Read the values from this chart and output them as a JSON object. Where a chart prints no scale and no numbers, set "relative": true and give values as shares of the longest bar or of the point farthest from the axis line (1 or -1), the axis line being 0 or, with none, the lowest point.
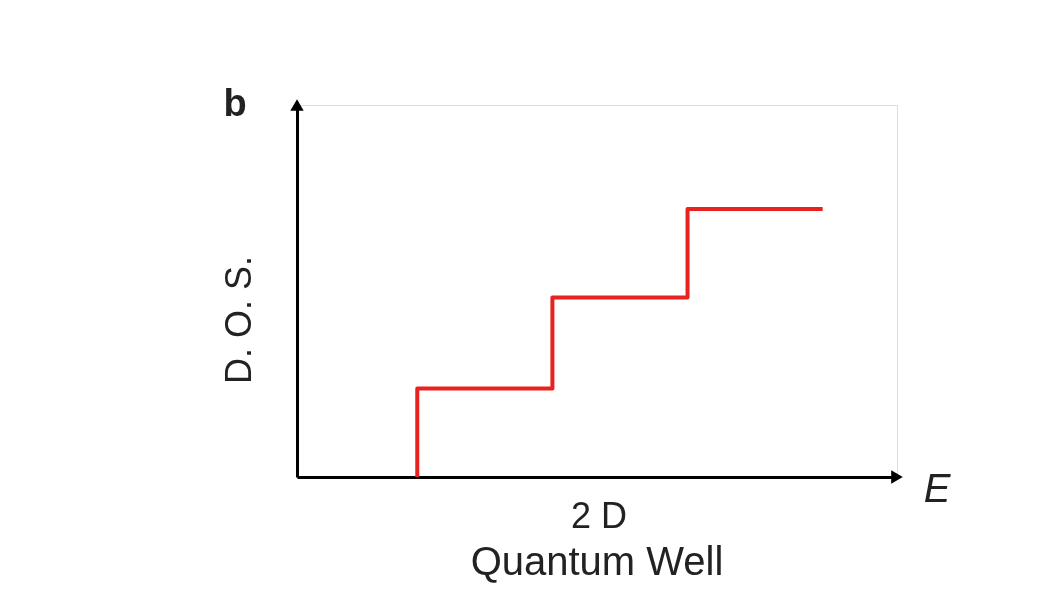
{
  "chart_data": {
    "type": "step",
    "title": "b",
    "xlabel": "E",
    "ylabel": "D. O. S.",
    "annotations": [
      "2 D",
      "Quantum Well"
    ],
    "categories": [
      null,
      null,
      null,
      null
    ],
    "relative": true,
    "series": [
      {
        "color": "#e8231f",
        "values": [
          0,
          0.33,
          0.67,
          1
        ]
      }
    ],
    "grid": false,
    "tick_labels": false,
    "marker": "none",
    "line_style": "solid"
  }
}
